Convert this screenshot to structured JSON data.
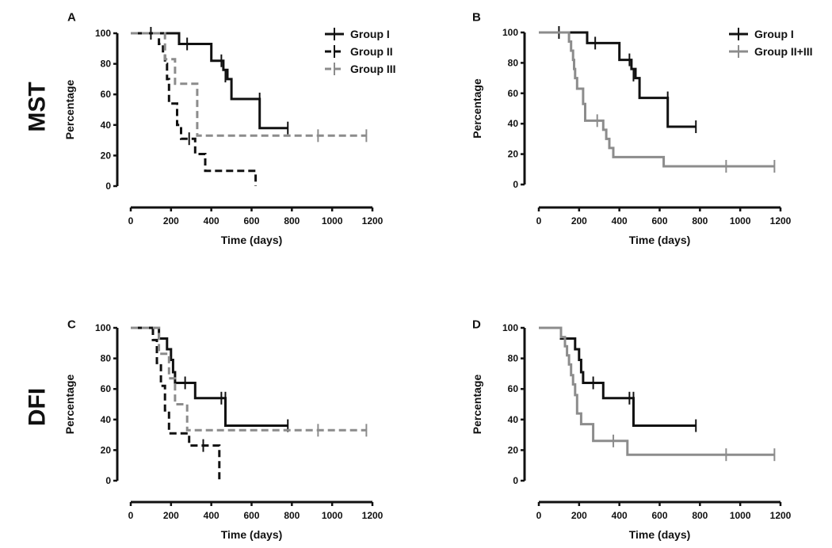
{
  "row_labels": [
    "MST",
    "DFI"
  ],
  "colors": {
    "black": "#111111",
    "gray": "#8c8c8c",
    "background": "#ffffff"
  },
  "chart_data": [
    {
      "panel": "A",
      "type": "line",
      "subtype": "kaplan-meier survival",
      "xlabel": "Time (days)",
      "ylabel": "Percentage",
      "xlim": [
        0,
        1200
      ],
      "ylim": [
        0,
        100
      ],
      "xticks": [
        0,
        200,
        400,
        600,
        800,
        1000,
        1200
      ],
      "yticks": [
        0,
        20,
        40,
        60,
        80,
        100
      ],
      "legend_position": "top-right",
      "series": [
        {
          "name": "Group I",
          "style": "solid",
          "color": "#111111",
          "steps": [
            [
              0,
              100
            ],
            [
              240,
              100
            ],
            [
              240,
              93
            ],
            [
              400,
              93
            ],
            [
              400,
              82
            ],
            [
              460,
              82
            ],
            [
              460,
              76
            ],
            [
              480,
              76
            ],
            [
              480,
              70
            ],
            [
              500,
              70
            ],
            [
              500,
              57
            ],
            [
              640,
              57
            ],
            [
              640,
              38
            ],
            [
              780,
              38
            ]
          ],
          "censored": [
            [
              100,
              100
            ],
            [
              280,
              93
            ],
            [
              450,
              82
            ],
            [
              470,
              72
            ],
            [
              640,
              57
            ],
            [
              780,
              38
            ]
          ]
        },
        {
          "name": "Group II",
          "style": "dashed",
          "color": "#111111",
          "steps": [
            [
              0,
              100
            ],
            [
              140,
              100
            ],
            [
              140,
              93
            ],
            [
              160,
              93
            ],
            [
              160,
              87
            ],
            [
              170,
              87
            ],
            [
              170,
              80
            ],
            [
              180,
              80
            ],
            [
              180,
              70
            ],
            [
              190,
              70
            ],
            [
              190,
              54
            ],
            [
              230,
              54
            ],
            [
              230,
              40
            ],
            [
              250,
              40
            ],
            [
              250,
              31
            ],
            [
              320,
              31
            ],
            [
              320,
              21
            ],
            [
              370,
              21
            ],
            [
              370,
              10
            ],
            [
              620,
              10
            ],
            [
              620,
              0
            ]
          ],
          "censored": [
            [
              290,
              31
            ]
          ]
        },
        {
          "name": "Group III",
          "style": "dashed",
          "color": "#8c8c8c",
          "steps": [
            [
              0,
              100
            ],
            [
              170,
              100
            ],
            [
              170,
              83
            ],
            [
              220,
              83
            ],
            [
              220,
              67
            ],
            [
              330,
              67
            ],
            [
              330,
              33
            ],
            [
              1170,
              33
            ]
          ],
          "censored": [
            [
              930,
              33
            ],
            [
              1170,
              33
            ]
          ]
        }
      ]
    },
    {
      "panel": "B",
      "type": "line",
      "subtype": "kaplan-meier survival",
      "xlabel": "Time (days)",
      "ylabel": "Percentage",
      "xlim": [
        0,
        1200
      ],
      "ylim": [
        0,
        100
      ],
      "xticks": [
        0,
        200,
        400,
        600,
        800,
        1000,
        1200
      ],
      "yticks": [
        0,
        20,
        40,
        60,
        80,
        100
      ],
      "legend_position": "top-right",
      "series": [
        {
          "name": "Group I",
          "style": "solid",
          "color": "#111111",
          "steps": [
            [
              0,
              100
            ],
            [
              240,
              100
            ],
            [
              240,
              93
            ],
            [
              400,
              93
            ],
            [
              400,
              82
            ],
            [
              460,
              82
            ],
            [
              460,
              76
            ],
            [
              480,
              76
            ],
            [
              480,
              70
            ],
            [
              500,
              70
            ],
            [
              500,
              57
            ],
            [
              640,
              57
            ],
            [
              640,
              38
            ],
            [
              780,
              38
            ]
          ],
          "censored": [
            [
              100,
              100
            ],
            [
              280,
              93
            ],
            [
              450,
              82
            ],
            [
              470,
              72
            ],
            [
              640,
              57
            ],
            [
              780,
              38
            ]
          ]
        },
        {
          "name": "Group II+III",
          "style": "solid",
          "color": "#8c8c8c",
          "steps": [
            [
              0,
              100
            ],
            [
              150,
              100
            ],
            [
              150,
              94
            ],
            [
              160,
              94
            ],
            [
              160,
              88
            ],
            [
              170,
              88
            ],
            [
              170,
              82
            ],
            [
              175,
              82
            ],
            [
              175,
              76
            ],
            [
              180,
              76
            ],
            [
              180,
              70
            ],
            [
              190,
              70
            ],
            [
              190,
              63
            ],
            [
              220,
              63
            ],
            [
              220,
              53
            ],
            [
              230,
              53
            ],
            [
              230,
              42
            ],
            [
              320,
              42
            ],
            [
              320,
              36
            ],
            [
              335,
              36
            ],
            [
              335,
              30
            ],
            [
              350,
              30
            ],
            [
              350,
              24
            ],
            [
              370,
              24
            ],
            [
              370,
              18
            ],
            [
              620,
              18
            ],
            [
              620,
              12
            ],
            [
              1170,
              12
            ]
          ],
          "censored": [
            [
              290,
              42
            ],
            [
              930,
              12
            ],
            [
              1170,
              12
            ]
          ]
        }
      ]
    },
    {
      "panel": "C",
      "type": "line",
      "subtype": "kaplan-meier survival",
      "xlabel": "Time (days)",
      "ylabel": "Percentage",
      "xlim": [
        0,
        1200
      ],
      "ylim": [
        0,
        100
      ],
      "xticks": [
        0,
        200,
        400,
        600,
        800,
        1000,
        1200
      ],
      "yticks": [
        0,
        20,
        40,
        60,
        80,
        100
      ],
      "legend_position": "none",
      "series": [
        {
          "name": "Group I",
          "style": "solid",
          "color": "#111111",
          "steps": [
            [
              0,
              100
            ],
            [
              140,
              100
            ],
            [
              140,
              93
            ],
            [
              180,
              93
            ],
            [
              180,
              86
            ],
            [
              200,
              86
            ],
            [
              200,
              79
            ],
            [
              210,
              79
            ],
            [
              210,
              71
            ],
            [
              220,
              71
            ],
            [
              220,
              64
            ],
            [
              320,
              64
            ],
            [
              320,
              54
            ],
            [
              470,
              54
            ],
            [
              470,
              36
            ],
            [
              780,
              36
            ]
          ],
          "censored": [
            [
              270,
              64
            ],
            [
              450,
              54
            ],
            [
              470,
              54
            ],
            [
              780,
              36
            ]
          ]
        },
        {
          "name": "Group II",
          "style": "dashed",
          "color": "#111111",
          "steps": [
            [
              0,
              100
            ],
            [
              110,
              100
            ],
            [
              110,
              92
            ],
            [
              130,
              92
            ],
            [
              130,
              77
            ],
            [
              150,
              77
            ],
            [
              150,
              62
            ],
            [
              170,
              62
            ],
            [
              170,
              46
            ],
            [
              190,
              46
            ],
            [
              190,
              31
            ],
            [
              290,
              31
            ],
            [
              290,
              23
            ],
            [
              440,
              23
            ],
            [
              440,
              0
            ]
          ],
          "censored": [
            [
              360,
              23
            ]
          ]
        },
        {
          "name": "Group III",
          "style": "dashed",
          "color": "#8c8c8c",
          "steps": [
            [
              0,
              100
            ],
            [
              140,
              100
            ],
            [
              140,
              83
            ],
            [
              190,
              83
            ],
            [
              190,
              67
            ],
            [
              220,
              67
            ],
            [
              220,
              50
            ],
            [
              280,
              50
            ],
            [
              280,
              33
            ],
            [
              1170,
              33
            ]
          ],
          "censored": [
            [
              930,
              33
            ],
            [
              1170,
              33
            ]
          ]
        }
      ]
    },
    {
      "panel": "D",
      "type": "line",
      "subtype": "kaplan-meier survival",
      "xlabel": "Time (days)",
      "ylabel": "Percentage",
      "xlim": [
        0,
        1200
      ],
      "ylim": [
        0,
        100
      ],
      "xticks": [
        0,
        200,
        400,
        600,
        800,
        1000,
        1200
      ],
      "yticks": [
        0,
        20,
        40,
        60,
        80,
        100
      ],
      "legend_position": "none",
      "series": [
        {
          "name": "Group I",
          "style": "solid",
          "color": "#111111",
          "steps": [
            [
              0,
              100
            ],
            [
              110,
              100
            ],
            [
              110,
              93
            ],
            [
              180,
              93
            ],
            [
              180,
              86
            ],
            [
              200,
              86
            ],
            [
              200,
              79
            ],
            [
              210,
              79
            ],
            [
              210,
              71
            ],
            [
              220,
              71
            ],
            [
              220,
              64
            ],
            [
              320,
              64
            ],
            [
              320,
              54
            ],
            [
              470,
              54
            ],
            [
              470,
              36
            ],
            [
              780,
              36
            ]
          ],
          "censored": [
            [
              270,
              64
            ],
            [
              450,
              54
            ],
            [
              470,
              54
            ],
            [
              780,
              36
            ]
          ]
        },
        {
          "name": "Group II+III",
          "style": "solid",
          "color": "#8c8c8c",
          "steps": [
            [
              0,
              100
            ],
            [
              110,
              100
            ],
            [
              110,
              94
            ],
            [
              130,
              94
            ],
            [
              130,
              88
            ],
            [
              140,
              88
            ],
            [
              140,
              82
            ],
            [
              150,
              82
            ],
            [
              150,
              76
            ],
            [
              160,
              76
            ],
            [
              160,
              69
            ],
            [
              170,
              69
            ],
            [
              170,
              63
            ],
            [
              180,
              63
            ],
            [
              180,
              56
            ],
            [
              190,
              56
            ],
            [
              190,
              44
            ],
            [
              210,
              44
            ],
            [
              210,
              37
            ],
            [
              270,
              37
            ],
            [
              270,
              26
            ],
            [
              440,
              26
            ],
            [
              440,
              17
            ],
            [
              1170,
              17
            ]
          ],
          "censored": [
            [
              370,
              26
            ],
            [
              930,
              17
            ],
            [
              1170,
              17
            ]
          ]
        }
      ]
    }
  ]
}
